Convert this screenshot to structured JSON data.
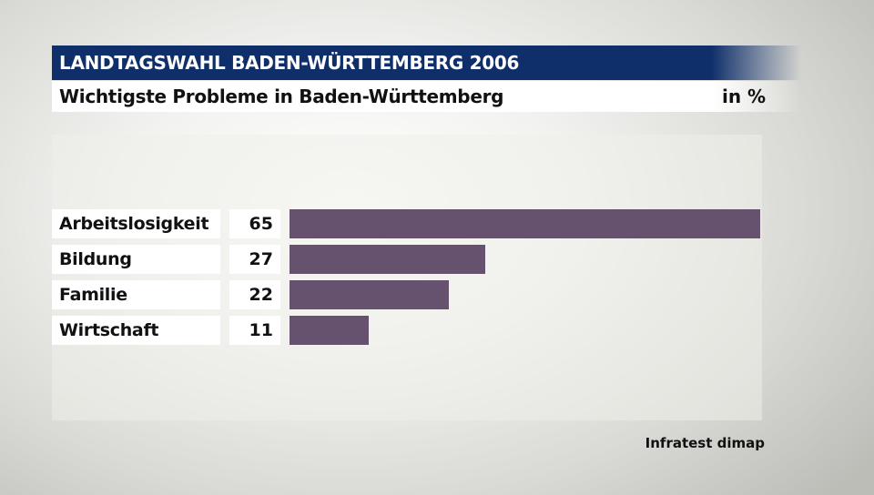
{
  "header": {
    "title": "LANDTAGSWAHL BADEN-WÜRTTEMBERG 2006",
    "subtitle": "Wichtigste Probleme in Baden-Württemberg",
    "unit": "in %"
  },
  "source": "Infratest dimap",
  "colors": {
    "title_bg": "#0f2f6a",
    "bar": "#66516f"
  },
  "chart_data": {
    "type": "bar",
    "orientation": "horizontal",
    "title": "Wichtigste Probleme in Baden-Württemberg",
    "categories": [
      "Arbeitslosigkeit",
      "Bildung",
      "Familie",
      "Wirtschaft"
    ],
    "values": [
      65,
      27,
      22,
      11
    ],
    "value_labels": [
      "65",
      "27",
      "22",
      "11"
    ],
    "xlim": [
      0,
      65
    ],
    "grid": false,
    "legend": "none"
  }
}
